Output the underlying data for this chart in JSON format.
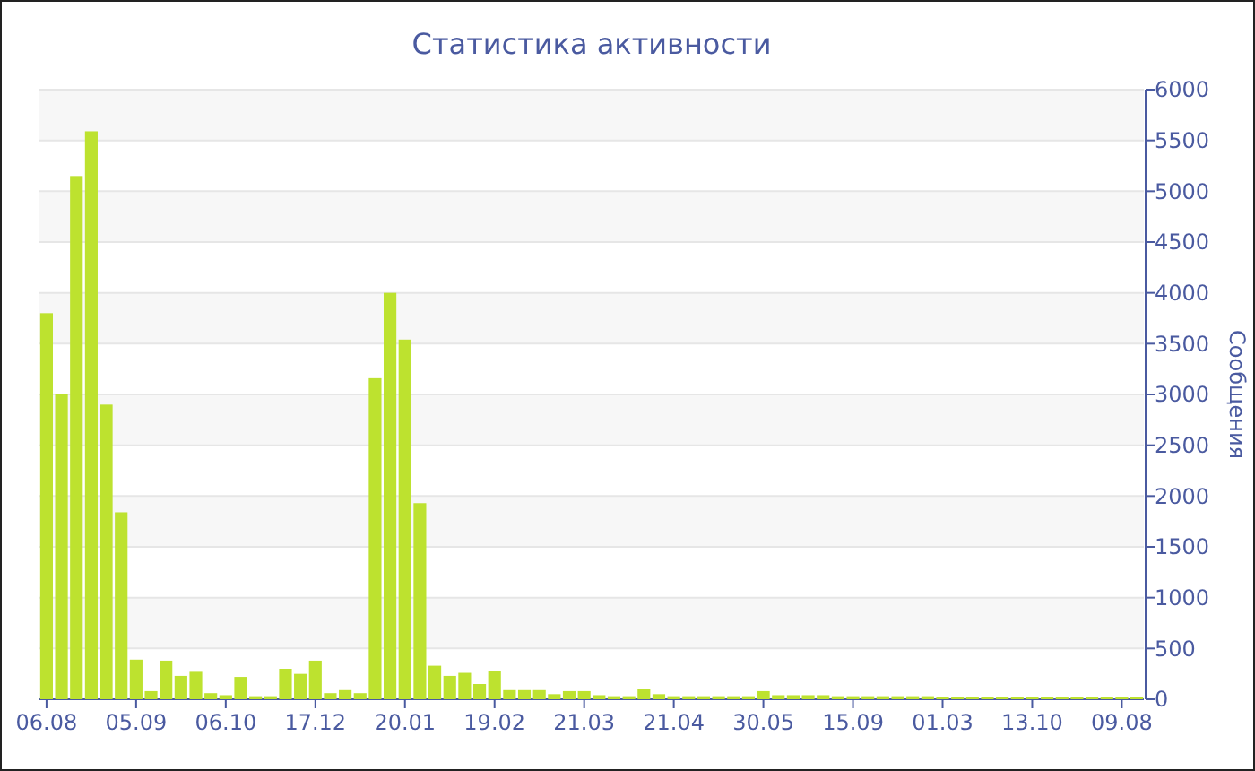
{
  "chart_data": {
    "type": "bar",
    "title": "Статистика активности",
    "ylabel": "Сообщения",
    "categories": [
      "06.08",
      null,
      null,
      null,
      null,
      null,
      "05.09",
      null,
      null,
      null,
      null,
      null,
      "06.10",
      null,
      null,
      null,
      null,
      null,
      "17.12",
      null,
      null,
      null,
      null,
      null,
      "20.01",
      null,
      null,
      null,
      null,
      null,
      "19.02",
      null,
      null,
      null,
      null,
      null,
      "21.03",
      null,
      null,
      null,
      null,
      null,
      "21.04",
      null,
      null,
      null,
      null,
      null,
      "30.05",
      null,
      null,
      null,
      null,
      null,
      "15.09",
      null,
      null,
      null,
      null,
      null,
      "01.03",
      null,
      null,
      null,
      null,
      null,
      "13.10",
      null,
      null,
      null,
      null,
      null,
      "09.08",
      null
    ],
    "values": [
      3800,
      3000,
      5150,
      5590,
      2900,
      1840,
      390,
      80,
      380,
      230,
      270,
      60,
      40,
      220,
      30,
      30,
      300,
      250,
      380,
      60,
      90,
      60,
      3160,
      4000,
      3540,
      1930,
      330,
      230,
      260,
      150,
      280,
      90,
      90,
      90,
      50,
      80,
      80,
      40,
      30,
      30,
      100,
      50,
      30,
      30,
      30,
      30,
      30,
      30,
      80,
      40,
      40,
      40,
      40,
      30,
      30,
      30,
      30,
      30,
      30,
      30,
      20,
      20,
      20,
      20,
      20,
      20,
      20,
      20,
      20,
      20,
      20,
      20,
      20,
      20
    ],
    "color": "#bde22f",
    "ylim": [
      0,
      6000
    ],
    "yticks": [
      0,
      500,
      1000,
      1500,
      2000,
      2500,
      3000,
      3500,
      4000,
      4500,
      5000,
      5500,
      6000
    ],
    "grid": "y"
  }
}
